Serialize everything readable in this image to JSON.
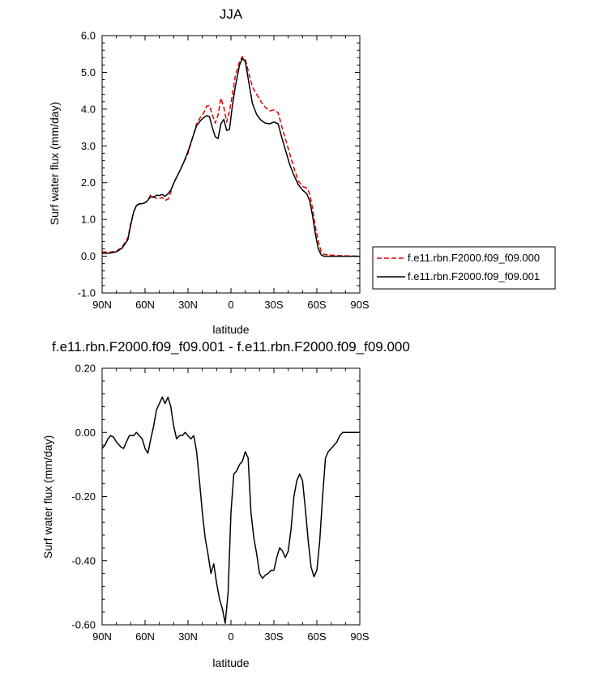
{
  "chart_data": [
    {
      "type": "line",
      "title": "JJA",
      "xlabel": "latitude",
      "ylabel": "Surf water flux (mm/day)",
      "xlim": [
        90,
        -90
      ],
      "ylim": [
        -1.0,
        6.0
      ],
      "x_ticks": [
        {
          "value": 90,
          "label": "90N"
        },
        {
          "value": 60,
          "label": "60N"
        },
        {
          "value": 30,
          "label": "30N"
        },
        {
          "value": 0,
          "label": "0"
        },
        {
          "value": -30,
          "label": "30S"
        },
        {
          "value": -60,
          "label": "60S"
        },
        {
          "value": -90,
          "label": "90S"
        }
      ],
      "y_ticks": [
        {
          "value": -1.0,
          "label": "-1.0"
        },
        {
          "value": 0.0,
          "label": "0.0"
        },
        {
          "value": 1.0,
          "label": "1.0"
        },
        {
          "value": 2.0,
          "label": "2.0"
        },
        {
          "value": 3.0,
          "label": "3.0"
        },
        {
          "value": 4.0,
          "label": "4.0"
        },
        {
          "value": 5.0,
          "label": "5.0"
        },
        {
          "value": 6.0,
          "label": "6.0"
        }
      ],
      "legend_position": "right",
      "series": [
        {
          "name": "f.e11.rbn.F2000.f09_f09.000",
          "color": "#e00000",
          "dash": "dashed",
          "points": [
            [
              90,
              0.12
            ],
            [
              85,
              0.11
            ],
            [
              80,
              0.14
            ],
            [
              76,
              0.25
            ],
            [
              72,
              0.5
            ],
            [
              70,
              0.9
            ],
            [
              68,
              1.2
            ],
            [
              66,
              1.38
            ],
            [
              64,
              1.43
            ],
            [
              61,
              1.44
            ],
            [
              59,
              1.48
            ],
            [
              56,
              1.67
            ],
            [
              54,
              1.62
            ],
            [
              52,
              1.57
            ],
            [
              50,
              1.57
            ],
            [
              48,
              1.6
            ],
            [
              46,
              1.52
            ],
            [
              44,
              1.55
            ],
            [
              42,
              1.75
            ],
            [
              40,
              2.0
            ],
            [
              36,
              2.3
            ],
            [
              33,
              2.55
            ],
            [
              30,
              2.8
            ],
            [
              27,
              3.2
            ],
            [
              24,
              3.6
            ],
            [
              21,
              3.8
            ],
            [
              19,
              3.9
            ],
            [
              17,
              4.08
            ],
            [
              15,
              4.1
            ],
            [
              13,
              3.85
            ],
            [
              11,
              3.62
            ],
            [
              9,
              3.85
            ],
            [
              7,
              4.3
            ],
            [
              5,
              4.05
            ],
            [
              3,
              3.65
            ],
            [
              1,
              3.95
            ],
            [
              -1,
              4.4
            ],
            [
              -3,
              4.9
            ],
            [
              -6,
              5.3
            ],
            [
              -8,
              5.43
            ],
            [
              -10,
              5.35
            ],
            [
              -13,
              4.9
            ],
            [
              -15,
              4.6
            ],
            [
              -18,
              4.4
            ],
            [
              -21,
              4.2
            ],
            [
              -24,
              4.05
            ],
            [
              -27,
              3.95
            ],
            [
              -30,
              3.98
            ],
            [
              -33,
              3.9
            ],
            [
              -35,
              3.6
            ],
            [
              -38,
              3.2
            ],
            [
              -41,
              2.8
            ],
            [
              -44,
              2.4
            ],
            [
              -47,
              2.05
            ],
            [
              -50,
              1.9
            ],
            [
              -53,
              1.85
            ],
            [
              -55,
              1.7
            ],
            [
              -57,
              1.3
            ],
            [
              -59,
              0.8
            ],
            [
              -61,
              0.4
            ],
            [
              -63,
              0.12
            ],
            [
              -65,
              0.05
            ],
            [
              -70,
              0.03
            ],
            [
              -75,
              0.02
            ],
            [
              -80,
              0.01
            ],
            [
              -90,
              0.0
            ]
          ]
        },
        {
          "name": "f.e11.rbn.F2000.f09_f09.001",
          "color": "#000000",
          "dash": "solid",
          "points": [
            [
              90,
              0.08
            ],
            [
              85,
              0.08
            ],
            [
              80,
              0.12
            ],
            [
              76,
              0.22
            ],
            [
              72,
              0.45
            ],
            [
              70,
              0.85
            ],
            [
              68,
              1.2
            ],
            [
              66,
              1.38
            ],
            [
              64,
              1.42
            ],
            [
              61,
              1.44
            ],
            [
              59,
              1.48
            ],
            [
              56,
              1.62
            ],
            [
              54,
              1.6
            ],
            [
              52,
              1.66
            ],
            [
              50,
              1.65
            ],
            [
              48,
              1.68
            ],
            [
              46,
              1.63
            ],
            [
              44,
              1.7
            ],
            [
              42,
              1.8
            ],
            [
              40,
              1.98
            ],
            [
              36,
              2.3
            ],
            [
              33,
              2.55
            ],
            [
              30,
              2.85
            ],
            [
              27,
              3.2
            ],
            [
              24,
              3.55
            ],
            [
              21,
              3.7
            ],
            [
              19,
              3.77
            ],
            [
              17,
              3.82
            ],
            [
              15,
              3.8
            ],
            [
              13,
              3.5
            ],
            [
              11,
              3.25
            ],
            [
              9,
              3.2
            ],
            [
              7,
              3.6
            ],
            [
              5,
              3.72
            ],
            [
              3,
              3.42
            ],
            [
              1,
              3.45
            ],
            [
              -1,
              4.1
            ],
            [
              -3,
              4.6
            ],
            [
              -6,
              5.2
            ],
            [
              -8,
              5.38
            ],
            [
              -10,
              5.3
            ],
            [
              -13,
              4.6
            ],
            [
              -15,
              4.15
            ],
            [
              -18,
              3.85
            ],
            [
              -21,
              3.7
            ],
            [
              -24,
              3.62
            ],
            [
              -27,
              3.6
            ],
            [
              -30,
              3.65
            ],
            [
              -33,
              3.6
            ],
            [
              -35,
              3.3
            ],
            [
              -38,
              2.9
            ],
            [
              -41,
              2.5
            ],
            [
              -44,
              2.2
            ],
            [
              -47,
              1.95
            ],
            [
              -50,
              1.8
            ],
            [
              -53,
              1.7
            ],
            [
              -55,
              1.5
            ],
            [
              -57,
              1.1
            ],
            [
              -59,
              0.6
            ],
            [
              -61,
              0.2
            ],
            [
              -63,
              0.04
            ],
            [
              -65,
              0.0
            ],
            [
              -70,
              0.0
            ],
            [
              -75,
              0.0
            ],
            [
              -80,
              0.0
            ],
            [
              -90,
              0.0
            ]
          ]
        }
      ]
    },
    {
      "type": "line",
      "title": "f.e11.rbn.F2000.f09_f09.001 - f.e11.rbn.F2000.f09_f09.000",
      "xlabel": "latitude",
      "ylabel": "Surf water flux (mm/day)",
      "xlim": [
        90,
        -90
      ],
      "ylim": [
        -0.6,
        0.2
      ],
      "x_ticks": [
        {
          "value": 90,
          "label": "90N"
        },
        {
          "value": 60,
          "label": "60N"
        },
        {
          "value": 30,
          "label": "30N"
        },
        {
          "value": 0,
          "label": "0"
        },
        {
          "value": -30,
          "label": "30S"
        },
        {
          "value": -60,
          "label": "60S"
        },
        {
          "value": -90,
          "label": "90S"
        }
      ],
      "y_ticks": [
        {
          "value": -0.6,
          "label": "-0.60"
        },
        {
          "value": -0.4,
          "label": "-0.40"
        },
        {
          "value": -0.2,
          "label": "-0.20"
        },
        {
          "value": 0.0,
          "label": "0.00"
        },
        {
          "value": 0.2,
          "label": "0.20"
        }
      ],
      "series": [
        {
          "color": "#000000",
          "dash": "solid",
          "points": [
            [
              90,
              -0.05
            ],
            [
              88,
              -0.04
            ],
            [
              86,
              -0.02
            ],
            [
              84,
              -0.01
            ],
            [
              82,
              -0.015
            ],
            [
              80,
              -0.03
            ],
            [
              77,
              -0.045
            ],
            [
              75,
              -0.05
            ],
            [
              73,
              -0.03
            ],
            [
              71,
              -0.01
            ],
            [
              68,
              -0.01
            ],
            [
              66,
              0.0
            ],
            [
              64,
              -0.01
            ],
            [
              62,
              -0.02
            ],
            [
              60,
              -0.05
            ],
            [
              58,
              -0.065
            ],
            [
              56,
              -0.02
            ],
            [
              54,
              0.02
            ],
            [
              52,
              0.07
            ],
            [
              50,
              0.09
            ],
            [
              48,
              0.11
            ],
            [
              46,
              0.09
            ],
            [
              44,
              0.11
            ],
            [
              42,
              0.08
            ],
            [
              40,
              0.02
            ],
            [
              38,
              -0.02
            ],
            [
              36,
              -0.01
            ],
            [
              34,
              -0.01
            ],
            [
              32,
              0.0
            ],
            [
              30,
              -0.01
            ],
            [
              28,
              -0.02
            ],
            [
              26,
              -0.01
            ],
            [
              24,
              -0.06
            ],
            [
              22,
              -0.15
            ],
            [
              20,
              -0.25
            ],
            [
              18,
              -0.33
            ],
            [
              16,
              -0.38
            ],
            [
              14,
              -0.44
            ],
            [
              12,
              -0.41
            ],
            [
              10,
              -0.47
            ],
            [
              8,
              -0.52
            ],
            [
              6,
              -0.55
            ],
            [
              4,
              -0.595
            ],
            [
              2,
              -0.5
            ],
            [
              0,
              -0.25
            ],
            [
              -2,
              -0.13
            ],
            [
              -4,
              -0.12
            ],
            [
              -6,
              -0.1
            ],
            [
              -8,
              -0.09
            ],
            [
              -10,
              -0.06
            ],
            [
              -12,
              -0.08
            ],
            [
              -14,
              -0.25
            ],
            [
              -16,
              -0.33
            ],
            [
              -18,
              -0.38
            ],
            [
              -20,
              -0.44
            ],
            [
              -22,
              -0.455
            ],
            [
              -24,
              -0.445
            ],
            [
              -26,
              -0.44
            ],
            [
              -28,
              -0.43
            ],
            [
              -30,
              -0.43
            ],
            [
              -32,
              -0.39
            ],
            [
              -34,
              -0.36
            ],
            [
              -36,
              -0.37
            ],
            [
              -38,
              -0.39
            ],
            [
              -40,
              -0.37
            ],
            [
              -42,
              -0.3
            ],
            [
              -44,
              -0.2
            ],
            [
              -46,
              -0.15
            ],
            [
              -48,
              -0.13
            ],
            [
              -50,
              -0.15
            ],
            [
              -52,
              -0.24
            ],
            [
              -54,
              -0.34
            ],
            [
              -56,
              -0.42
            ],
            [
              -58,
              -0.45
            ],
            [
              -60,
              -0.43
            ],
            [
              -62,
              -0.34
            ],
            [
              -64,
              -0.2
            ],
            [
              -66,
              -0.08
            ],
            [
              -68,
              -0.06
            ],
            [
              -70,
              -0.05
            ],
            [
              -72,
              -0.04
            ],
            [
              -74,
              -0.03
            ],
            [
              -76,
              -0.01
            ],
            [
              -78,
              0.0
            ],
            [
              -80,
              0.0
            ],
            [
              -90,
              0.0
            ]
          ]
        }
      ]
    }
  ]
}
